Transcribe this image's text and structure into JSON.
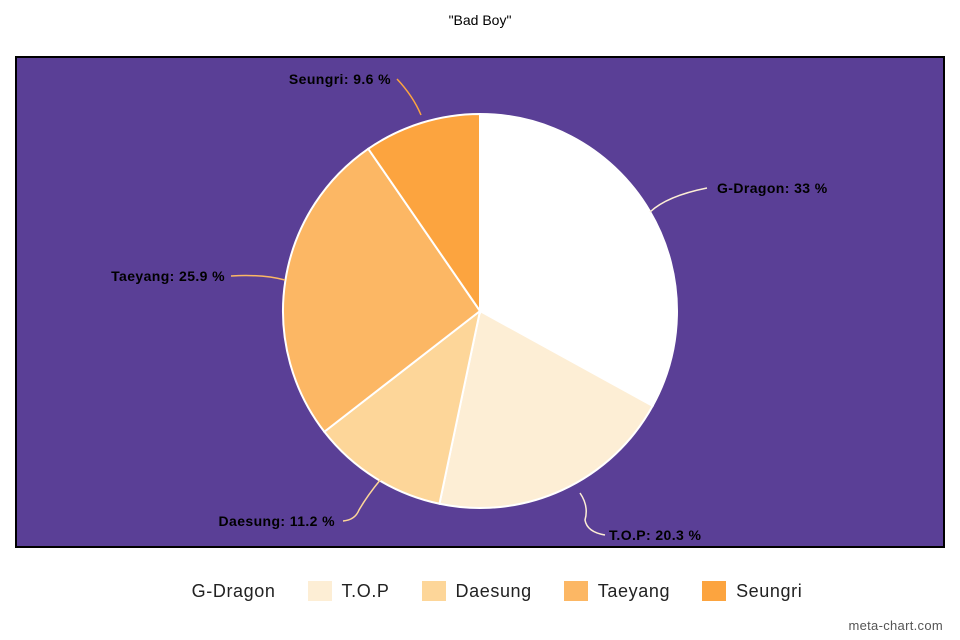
{
  "chart_data": {
    "type": "pie",
    "title": "\"Bad Boy\"",
    "slices": [
      {
        "name": "G-Dragon",
        "value": 33,
        "label": "G-Dragon: 33 %",
        "color": "#ffffff"
      },
      {
        "name": "T.O.P",
        "value": 20.3,
        "label": "T.O.P: 20.3 %",
        "color": "#fdeed5"
      },
      {
        "name": "Daesung",
        "value": 11.2,
        "label": "Daesung: 11.2 %",
        "color": "#fdd699"
      },
      {
        "name": "Taeyang",
        "value": 25.9,
        "label": "Taeyang: 25.9 %",
        "color": "#fcb764"
      },
      {
        "name": "Seungri",
        "value": 9.6,
        "label": "Seungri: 9.6 %",
        "color": "#fca43f"
      }
    ],
    "legend_position": "bottom",
    "background_color": "#5a3f96",
    "border_color": "#000000"
  },
  "watermark": "meta-chart.com"
}
